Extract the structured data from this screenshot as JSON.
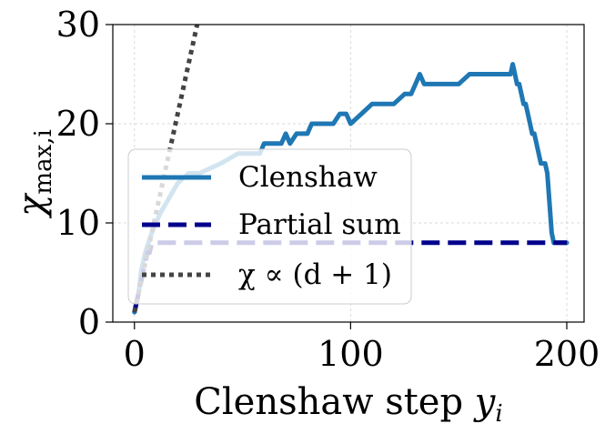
{
  "chart_data": {
    "type": "line",
    "title": "",
    "xlabel": "Clenshaw step y_i",
    "xlabel_main": "Clenshaw step ",
    "xlabel_var": "y",
    "xlabel_sub": "i",
    "ylabel": "χ_max,i",
    "ylabel_main": "χ",
    "ylabel_sub": "max,i",
    "xlim": [
      -10,
      208
    ],
    "ylim": [
      0,
      30
    ],
    "xticks": [
      0,
      100,
      200
    ],
    "yticks": [
      0,
      10,
      20,
      30
    ],
    "xtick_labels": [
      "0",
      "100",
      "200"
    ],
    "ytick_labels": [
      "0",
      "10",
      "20",
      "30"
    ],
    "grid": true,
    "legend_position": "lower-left",
    "series": [
      {
        "name": "Clenshaw",
        "style": "solid",
        "color": "#1f77b4",
        "x": [
          0,
          2,
          3,
          5,
          8,
          12,
          20,
          25,
          30,
          40,
          48,
          52,
          55,
          58,
          60,
          62,
          65,
          68,
          70,
          72,
          75,
          78,
          80,
          82,
          85,
          88,
          90,
          92,
          95,
          98,
          100,
          105,
          110,
          115,
          120,
          125,
          128,
          130,
          132,
          134,
          136,
          138,
          140,
          145,
          150,
          155,
          160,
          165,
          170,
          172,
          174,
          175,
          176,
          177,
          178,
          179,
          180,
          181,
          182,
          183,
          184,
          185,
          186,
          187,
          188,
          189,
          190,
          191,
          192,
          193,
          194,
          195,
          200
        ],
        "y": [
          1,
          3,
          5,
          7,
          9,
          11,
          14,
          15,
          15,
          16,
          17,
          17,
          17,
          17,
          18,
          18,
          18,
          18,
          19,
          18,
          19,
          19,
          19,
          20,
          20,
          20,
          20,
          20,
          21,
          21,
          20,
          21,
          22,
          22,
          22,
          23,
          23,
          24,
          25,
          24,
          24,
          24,
          24,
          24,
          24,
          25,
          25,
          25,
          25,
          25,
          25,
          26,
          25,
          24,
          24,
          23,
          22,
          22,
          21,
          20,
          19,
          19,
          18,
          17,
          16,
          16,
          16,
          15,
          12,
          9,
          8,
          8,
          8
        ]
      },
      {
        "name": "Partial sum",
        "style": "dashed",
        "color": "#00008b",
        "x": [
          0,
          1,
          2,
          3,
          4,
          5,
          6,
          7,
          8,
          200
        ],
        "y": [
          1,
          2,
          3,
          4,
          5,
          6,
          7,
          7,
          8,
          8
        ]
      },
      {
        "name": "χ ∝ (d+1)",
        "style": "dotted",
        "color": "#444444",
        "x": [
          0,
          29
        ],
        "y": [
          1,
          30
        ]
      }
    ],
    "legend": [
      {
        "label": "Clenshaw",
        "style": "solid",
        "color": "#1f77b4"
      },
      {
        "label": "Partial sum",
        "style": "dashed",
        "color": "#00008b"
      },
      {
        "label": "χ ∝ (d + 1)",
        "style": "dotted",
        "color": "#444444"
      }
    ]
  }
}
